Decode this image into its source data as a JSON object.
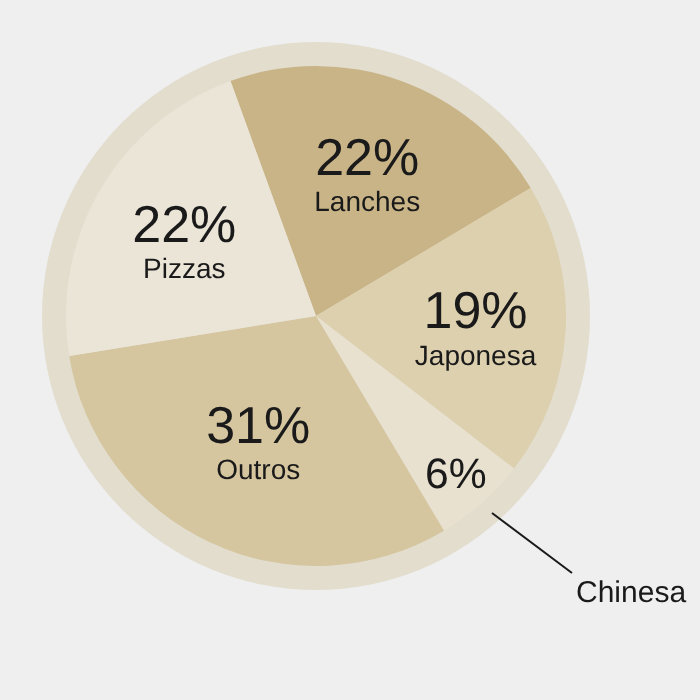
{
  "chart_data": {
    "type": "pie",
    "categories": [
      "Lanches",
      "Japonesa",
      "Chinesa",
      "Outros",
      "Pizzas"
    ],
    "values": [
      22,
      19,
      6,
      31,
      22
    ],
    "colors": [
      "#c9b487",
      "#ddd0ae",
      "#e8e1cf",
      "#d5c6a0",
      "#ebe5d8"
    ],
    "value_labels": [
      "22%",
      "19%",
      "6%",
      "31%",
      "22%"
    ],
    "legend": false
  }
}
